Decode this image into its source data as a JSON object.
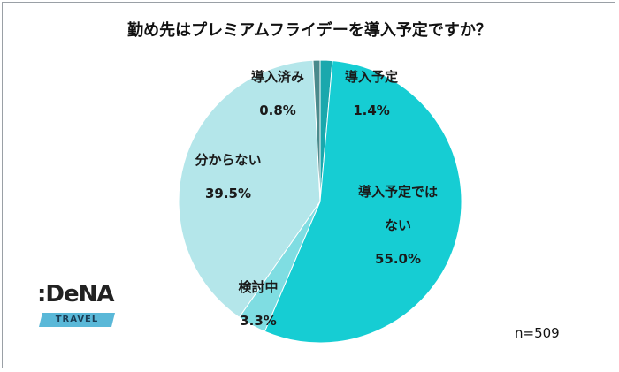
{
  "chart_data": {
    "type": "pie",
    "title": "勤め先はプレミアムフライデーを導入予定ですか？",
    "slices": [
      {
        "label": "導入予定",
        "value": 1.4,
        "value_label": "1.4%",
        "color": "#1aa8ad"
      },
      {
        "label": "導入予定ではない",
        "label_lines": [
          "導入予定では",
          "ない"
        ],
        "value": 55.0,
        "value_label": "55.0%",
        "color": "#16cdd3"
      },
      {
        "label": "検討中",
        "value": 3.3,
        "value_label": "3.3%",
        "color": "#7fdde2"
      },
      {
        "label": "分からない",
        "value": 39.5,
        "value_label": "39.5%",
        "color": "#b4e6ea"
      },
      {
        "label": "導入済み",
        "value": 0.8,
        "value_label": "0.8%",
        "color": "#4a8a8c"
      }
    ],
    "start_angle_deg": 0,
    "direction": "clockwise",
    "note": "n=509"
  },
  "logo": {
    "word": ":DeNA",
    "sub": "TRAVEL"
  }
}
